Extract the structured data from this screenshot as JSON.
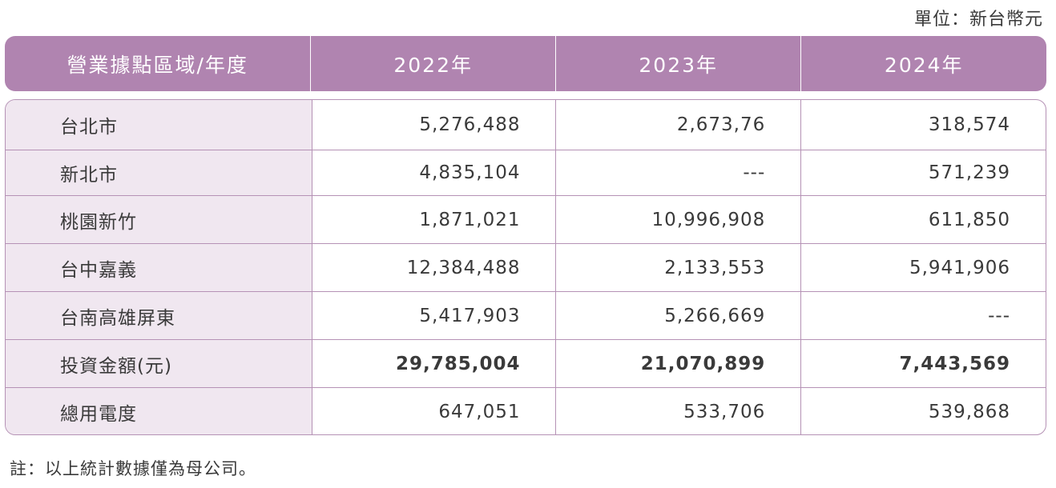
{
  "unit_label": "單位：新台幣元",
  "table": {
    "headers": [
      "營業據點區域/年度",
      "2022年",
      "2023年",
      "2024年"
    ],
    "rows": [
      {
        "label": "台北市",
        "values": [
          "5,276,488",
          "2,673,76",
          "318,574"
        ],
        "bold": false
      },
      {
        "label": "新北市",
        "values": [
          "4,835,104",
          "---",
          "571,239"
        ],
        "bold": false
      },
      {
        "label": "桃園新竹",
        "values": [
          "1,871,021",
          "10,996,908",
          "611,850"
        ],
        "bold": false
      },
      {
        "label": "台中嘉義",
        "values": [
          "12,384,488",
          "2,133,553",
          "5,941,906"
        ],
        "bold": false
      },
      {
        "label": "台南高雄屏東",
        "values": [
          "5,417,903",
          "5,266,669",
          "---"
        ],
        "bold": false
      },
      {
        "label": "投資金額(元)",
        "values": [
          "29,785,004",
          "21,070,899",
          "7,443,569"
        ],
        "bold": true
      },
      {
        "label": "總用電度",
        "values": [
          "647,051",
          "533,706",
          "539,868"
        ],
        "bold": false
      }
    ]
  },
  "note": "註：以上統計數據僅為母公司。"
}
